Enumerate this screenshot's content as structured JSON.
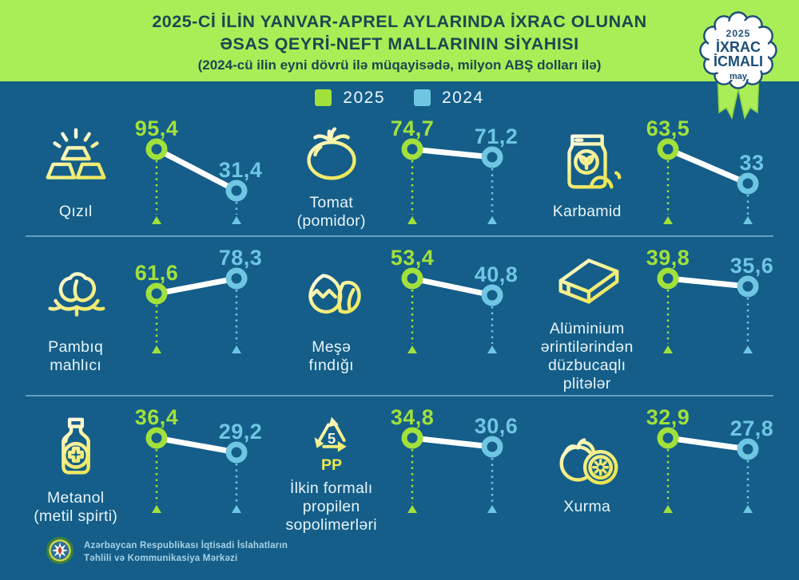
{
  "header": {
    "title_line1": "2025-Cİ İLİN YANVAR-APREL AYLARINDA İXRAC OLUNAN",
    "title_line2": "ƏSAS QEYRİ-NEFT MALLARININ SİYAHISI",
    "subtitle": "(2024-cü ilin eyni dövrü ilə müqayisədə, milyon ABŞ dolları ilə)",
    "badge": {
      "year": "2025",
      "line1": "İXRAC",
      "line2": "İCMALI",
      "month": "may"
    }
  },
  "legend": [
    {
      "label": "2025",
      "color": "#a2e03c"
    },
    {
      "label": "2024",
      "color": "#6fc6e3"
    }
  ],
  "colors": {
    "green": "#a2e03c",
    "blue": "#6fc6e3",
    "bg_teal": "#145e89",
    "bg_header": "#a9ee57",
    "badge_navy": "#1d4e79",
    "title_text": "#1d4752",
    "line_white": "#ffffff"
  },
  "chart_data": {
    "type": "line",
    "title": "2025-ci ilin yanvar-aprel aylarında ixrac olunan əsas qeyri-neft mallarının siyahısı",
    "unit": "milyon ABŞ dolları",
    "series_labels": [
      "2025",
      "2024"
    ],
    "items": [
      {
        "name": "Qızıl",
        "label_lines": [
          "Qızıl"
        ],
        "icon": "gold-bars-icon",
        "v2025": 95.4,
        "v2024": 31.4,
        "d2025": "95,4",
        "d2024": "31,4"
      },
      {
        "name": "Tomat (pomidor)",
        "label_lines": [
          "Tomat",
          "(pomidor)"
        ],
        "icon": "tomato-icon",
        "v2025": 74.7,
        "v2024": 71.2,
        "d2025": "74,7",
        "d2024": "71,2"
      },
      {
        "name": "Karbamid",
        "label_lines": [
          "Karbamid"
        ],
        "icon": "fertilizer-bag-icon",
        "v2025": 63.5,
        "v2024": 33,
        "d2025": "63,5",
        "d2024": "33"
      },
      {
        "name": "Pambıq mahlıcı",
        "label_lines": [
          "Pambıq",
          "mahlıcı"
        ],
        "icon": "cotton-icon",
        "v2025": 61.6,
        "v2024": 78.3,
        "d2025": "61,6",
        "d2024": "78,3"
      },
      {
        "name": "Meşə fındığı",
        "label_lines": [
          "Meşə",
          "fındığı"
        ],
        "icon": "hazelnut-icon",
        "v2025": 53.4,
        "v2024": 40.8,
        "d2025": "53,4",
        "d2024": "40,8"
      },
      {
        "name": "Alüminium ərintilərindən düzbucaqlı plitələr",
        "label_lines": [
          "Alüminium",
          "ərintilərindən",
          "düzbucaqlı",
          "plitələr"
        ],
        "icon": "aluminium-plate-icon",
        "v2025": 39.8,
        "v2024": 35.6,
        "d2025": "39,8",
        "d2024": "35,6"
      },
      {
        "name": "Metanol (metil spirti)",
        "label_lines": [
          "Metanol",
          "(metil spirti)"
        ],
        "icon": "methanol-bottle-icon",
        "v2025": 36.4,
        "v2024": 29.2,
        "d2025": "36,4",
        "d2024": "29,2"
      },
      {
        "name": "İlkin formalı propilen sopolimerləri",
        "label_lines": [
          "İlkin formalı",
          "propilen",
          "sopolimerləri"
        ],
        "icon": "pp-recycle-icon",
        "icon_text": {
          "number": "5",
          "code": "PP"
        },
        "v2025": 34.8,
        "v2024": 30.6,
        "d2025": "34,8",
        "d2024": "30,6"
      },
      {
        "name": "Xurma",
        "label_lines": [
          "Xurma"
        ],
        "icon": "persimmon-icon",
        "v2025": 32.9,
        "v2024": 27.8,
        "d2025": "32,9",
        "d2024": "27,8"
      }
    ]
  },
  "footer": {
    "org_line1": "Azərbaycan Respublikası İqtisadi İslahatların",
    "org_line2": "Təhlili və Kommunikasiya Mərkəzi"
  }
}
